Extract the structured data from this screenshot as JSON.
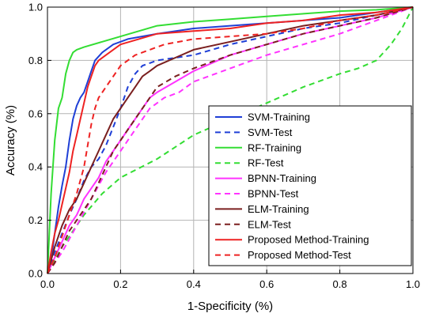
{
  "chart_data": {
    "type": "line",
    "title": "",
    "xlabel": "1-Specificity (%)",
    "ylabel": "Accuracy (%)",
    "xlim": [
      0,
      1
    ],
    "ylim": [
      0,
      1
    ],
    "xticks": [
      "0.0",
      "0.2",
      "0.4",
      "0.6",
      "0.8",
      "1.0"
    ],
    "yticks": [
      "0.0",
      "0.2",
      "0.4",
      "0.6",
      "0.8",
      "1.0"
    ],
    "grid": true,
    "legend_position": "lower-right",
    "series": [
      {
        "name": "SVM-Training",
        "color": "#1f3fd6",
        "dash": "solid",
        "points": [
          [
            0,
            0
          ],
          [
            0.01,
            0.05
          ],
          [
            0.02,
            0.15
          ],
          [
            0.03,
            0.25
          ],
          [
            0.04,
            0.33
          ],
          [
            0.05,
            0.4
          ],
          [
            0.06,
            0.5
          ],
          [
            0.07,
            0.58
          ],
          [
            0.08,
            0.63
          ],
          [
            0.09,
            0.66
          ],
          [
            0.1,
            0.68
          ],
          [
            0.11,
            0.72
          ],
          [
            0.12,
            0.76
          ],
          [
            0.13,
            0.8
          ],
          [
            0.15,
            0.83
          ],
          [
            0.18,
            0.86
          ],
          [
            0.22,
            0.88
          ],
          [
            0.3,
            0.9
          ],
          [
            0.4,
            0.92
          ],
          [
            0.5,
            0.93
          ],
          [
            0.6,
            0.94
          ],
          [
            0.8,
            0.96
          ],
          [
            1.0,
            1.0
          ]
        ]
      },
      {
        "name": "SVM-Test",
        "color": "#1f3fd6",
        "dash": "dashed",
        "points": [
          [
            0,
            0
          ],
          [
            0.02,
            0.08
          ],
          [
            0.04,
            0.15
          ],
          [
            0.06,
            0.22
          ],
          [
            0.08,
            0.28
          ],
          [
            0.1,
            0.35
          ],
          [
            0.12,
            0.4
          ],
          [
            0.14,
            0.43
          ],
          [
            0.16,
            0.48
          ],
          [
            0.18,
            0.55
          ],
          [
            0.2,
            0.62
          ],
          [
            0.22,
            0.7
          ],
          [
            0.24,
            0.75
          ],
          [
            0.26,
            0.78
          ],
          [
            0.28,
            0.79
          ],
          [
            0.3,
            0.8
          ],
          [
            0.35,
            0.81
          ],
          [
            0.4,
            0.82
          ],
          [
            0.5,
            0.86
          ],
          [
            0.6,
            0.89
          ],
          [
            0.7,
            0.92
          ],
          [
            0.8,
            0.94
          ],
          [
            0.9,
            0.97
          ],
          [
            1.0,
            1.0
          ]
        ]
      },
      {
        "name": "RF-Training",
        "color": "#33dd33",
        "dash": "solid",
        "points": [
          [
            0,
            0
          ],
          [
            0.01,
            0.3
          ],
          [
            0.02,
            0.5
          ],
          [
            0.03,
            0.62
          ],
          [
            0.04,
            0.66
          ],
          [
            0.05,
            0.75
          ],
          [
            0.06,
            0.8
          ],
          [
            0.07,
            0.83
          ],
          [
            0.08,
            0.84
          ],
          [
            0.1,
            0.85
          ],
          [
            0.15,
            0.87
          ],
          [
            0.2,
            0.89
          ],
          [
            0.25,
            0.91
          ],
          [
            0.3,
            0.93
          ],
          [
            0.4,
            0.945
          ],
          [
            0.5,
            0.955
          ],
          [
            0.6,
            0.965
          ],
          [
            0.7,
            0.975
          ],
          [
            0.8,
            0.985
          ],
          [
            0.9,
            0.99
          ],
          [
            1.0,
            1.0
          ]
        ]
      },
      {
        "name": "RF-Test",
        "color": "#33dd33",
        "dash": "dashed",
        "points": [
          [
            0,
            0
          ],
          [
            0.02,
            0.05
          ],
          [
            0.04,
            0.1
          ],
          [
            0.06,
            0.14
          ],
          [
            0.08,
            0.18
          ],
          [
            0.1,
            0.22
          ],
          [
            0.15,
            0.3
          ],
          [
            0.2,
            0.36
          ],
          [
            0.3,
            0.43
          ],
          [
            0.4,
            0.52
          ],
          [
            0.5,
            0.58
          ],
          [
            0.6,
            0.64
          ],
          [
            0.7,
            0.7
          ],
          [
            0.8,
            0.75
          ],
          [
            0.85,
            0.77
          ],
          [
            0.9,
            0.8
          ],
          [
            0.94,
            0.86
          ],
          [
            0.97,
            0.92
          ],
          [
            1.0,
            1.0
          ]
        ]
      },
      {
        "name": "BPNN-Training",
        "color": "#ff33ff",
        "dash": "solid",
        "points": [
          [
            0,
            0
          ],
          [
            0.02,
            0.06
          ],
          [
            0.04,
            0.12
          ],
          [
            0.06,
            0.18
          ],
          [
            0.08,
            0.22
          ],
          [
            0.1,
            0.28
          ],
          [
            0.12,
            0.32
          ],
          [
            0.14,
            0.36
          ],
          [
            0.16,
            0.42
          ],
          [
            0.18,
            0.46
          ],
          [
            0.2,
            0.5
          ],
          [
            0.22,
            0.54
          ],
          [
            0.24,
            0.58
          ],
          [
            0.26,
            0.62
          ],
          [
            0.28,
            0.66
          ],
          [
            0.3,
            0.68
          ],
          [
            0.35,
            0.72
          ],
          [
            0.4,
            0.76
          ],
          [
            0.5,
            0.82
          ],
          [
            0.6,
            0.86
          ],
          [
            0.7,
            0.9
          ],
          [
            0.8,
            0.93
          ],
          [
            0.9,
            0.96
          ],
          [
            1.0,
            1.0
          ]
        ]
      },
      {
        "name": "BPNN-Test",
        "color": "#ff33ff",
        "dash": "dashed",
        "points": [
          [
            0,
            0
          ],
          [
            0.04,
            0.08
          ],
          [
            0.08,
            0.18
          ],
          [
            0.12,
            0.28
          ],
          [
            0.16,
            0.38
          ],
          [
            0.2,
            0.46
          ],
          [
            0.24,
            0.54
          ],
          [
            0.28,
            0.62
          ],
          [
            0.32,
            0.66
          ],
          [
            0.36,
            0.68
          ],
          [
            0.4,
            0.72
          ],
          [
            0.5,
            0.77
          ],
          [
            0.6,
            0.82
          ],
          [
            0.7,
            0.86
          ],
          [
            0.8,
            0.9
          ],
          [
            0.9,
            0.95
          ],
          [
            1.0,
            1.0
          ]
        ]
      },
      {
        "name": "ELM-Training",
        "color": "#7a1f1f",
        "dash": "solid",
        "points": [
          [
            0,
            0
          ],
          [
            0.02,
            0.1
          ],
          [
            0.04,
            0.18
          ],
          [
            0.06,
            0.24
          ],
          [
            0.08,
            0.28
          ],
          [
            0.1,
            0.34
          ],
          [
            0.12,
            0.4
          ],
          [
            0.14,
            0.46
          ],
          [
            0.16,
            0.52
          ],
          [
            0.18,
            0.58
          ],
          [
            0.2,
            0.62
          ],
          [
            0.22,
            0.66
          ],
          [
            0.24,
            0.7
          ],
          [
            0.26,
            0.74
          ],
          [
            0.28,
            0.76
          ],
          [
            0.3,
            0.78
          ],
          [
            0.35,
            0.81
          ],
          [
            0.4,
            0.84
          ],
          [
            0.5,
            0.87
          ],
          [
            0.6,
            0.9
          ],
          [
            0.7,
            0.93
          ],
          [
            0.8,
            0.95
          ],
          [
            0.9,
            0.97
          ],
          [
            1.0,
            1.0
          ]
        ]
      },
      {
        "name": "ELM-Test",
        "color": "#7a1f1f",
        "dash": "dashed",
        "points": [
          [
            0,
            0
          ],
          [
            0.02,
            0.04
          ],
          [
            0.04,
            0.1
          ],
          [
            0.06,
            0.16
          ],
          [
            0.08,
            0.2
          ],
          [
            0.1,
            0.24
          ],
          [
            0.12,
            0.28
          ],
          [
            0.14,
            0.34
          ],
          [
            0.16,
            0.4
          ],
          [
            0.18,
            0.46
          ],
          [
            0.2,
            0.5
          ],
          [
            0.22,
            0.54
          ],
          [
            0.24,
            0.58
          ],
          [
            0.26,
            0.62
          ],
          [
            0.28,
            0.66
          ],
          [
            0.3,
            0.7
          ],
          [
            0.35,
            0.74
          ],
          [
            0.4,
            0.77
          ],
          [
            0.5,
            0.82
          ],
          [
            0.6,
            0.86
          ],
          [
            0.7,
            0.9
          ],
          [
            0.8,
            0.93
          ],
          [
            0.9,
            0.96
          ],
          [
            1.0,
            1.0
          ]
        ]
      },
      {
        "name": "Proposed Method-Training",
        "color": "#ee2222",
        "dash": "solid",
        "points": [
          [
            0,
            0
          ],
          [
            0.01,
            0.08
          ],
          [
            0.02,
            0.15
          ],
          [
            0.03,
            0.2
          ],
          [
            0.04,
            0.26
          ],
          [
            0.05,
            0.32
          ],
          [
            0.06,
            0.38
          ],
          [
            0.07,
            0.46
          ],
          [
            0.08,
            0.52
          ],
          [
            0.09,
            0.58
          ],
          [
            0.1,
            0.64
          ],
          [
            0.11,
            0.7
          ],
          [
            0.12,
            0.74
          ],
          [
            0.13,
            0.78
          ],
          [
            0.14,
            0.8
          ],
          [
            0.16,
            0.82
          ],
          [
            0.2,
            0.86
          ],
          [
            0.25,
            0.88
          ],
          [
            0.3,
            0.9
          ],
          [
            0.4,
            0.91
          ],
          [
            0.5,
            0.92
          ],
          [
            0.6,
            0.94
          ],
          [
            0.7,
            0.95
          ],
          [
            0.8,
            0.97
          ],
          [
            0.9,
            0.98
          ],
          [
            1.0,
            1.0
          ]
        ]
      },
      {
        "name": "Proposed Method-Test",
        "color": "#ee2222",
        "dash": "dashed",
        "points": [
          [
            0,
            0
          ],
          [
            0.02,
            0.06
          ],
          [
            0.04,
            0.14
          ],
          [
            0.06,
            0.22
          ],
          [
            0.08,
            0.3
          ],
          [
            0.1,
            0.4
          ],
          [
            0.11,
            0.48
          ],
          [
            0.12,
            0.56
          ],
          [
            0.13,
            0.62
          ],
          [
            0.14,
            0.66
          ],
          [
            0.16,
            0.7
          ],
          [
            0.18,
            0.74
          ],
          [
            0.2,
            0.78
          ],
          [
            0.22,
            0.8
          ],
          [
            0.24,
            0.82
          ],
          [
            0.28,
            0.84
          ],
          [
            0.32,
            0.86
          ],
          [
            0.4,
            0.88
          ],
          [
            0.5,
            0.89
          ],
          [
            0.6,
            0.9
          ],
          [
            0.7,
            0.92
          ],
          [
            0.8,
            0.95
          ],
          [
            0.9,
            0.97
          ],
          [
            1.0,
            1.0
          ]
        ]
      }
    ]
  }
}
